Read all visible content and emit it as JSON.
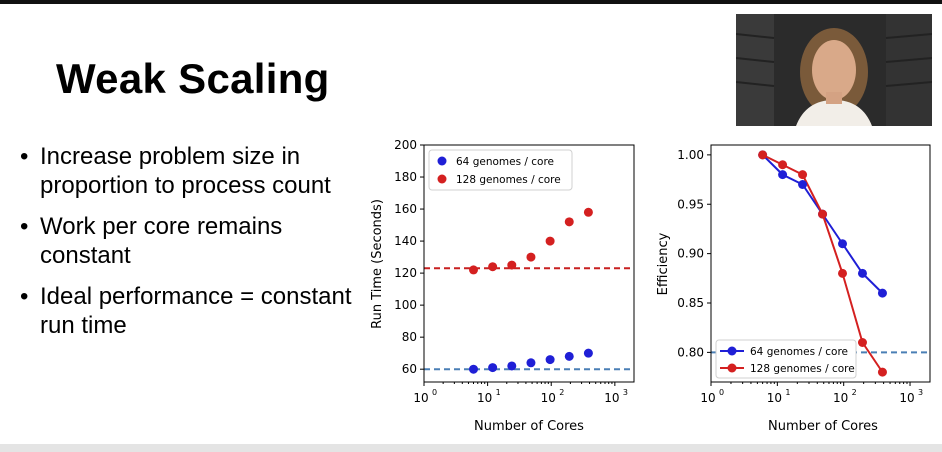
{
  "slide": {
    "title": "Weak Scaling",
    "bullets": [
      "Increase problem size in proportion to process count",
      "Work per core remains constant",
      "Ideal performance = constant run time"
    ],
    "bullet_symbol": "•"
  },
  "colors": {
    "blue": "#1f1fd6",
    "red": "#d42020",
    "dash_blue": "#4a7fb5",
    "dash_red": "#c82020"
  },
  "chart_data": [
    {
      "type": "scatter",
      "xlabel": "Number of Cores",
      "ylabel": "Run Time (Seconds)",
      "xscale": "log",
      "xlim": [
        1,
        2000
      ],
      "ylim": [
        52,
        200
      ],
      "xticks": [
        1,
        10,
        100,
        1000
      ],
      "xtick_labels": [
        "10",
        "10",
        "10",
        "10"
      ],
      "xtick_exponents": [
        "0",
        "1",
        "2",
        "3"
      ],
      "yticks": [
        60,
        80,
        100,
        120,
        140,
        160,
        180,
        200
      ],
      "ytick_labels": [
        "60",
        "80",
        "100",
        "120",
        "140",
        "160",
        "180",
        "200"
      ],
      "legend": "top-left",
      "series": [
        {
          "name": "64 genomes / core",
          "x": [
            6,
            12,
            24,
            48,
            96,
            192,
            384
          ],
          "values": [
            60,
            61,
            62,
            64,
            66,
            68,
            70
          ],
          "ideal": 60
        },
        {
          "name": "128 genomes / core",
          "x": [
            6,
            12,
            24,
            48,
            96,
            192,
            384
          ],
          "values": [
            122,
            124,
            125,
            130,
            140,
            152,
            158
          ],
          "ideal": 123
        }
      ]
    },
    {
      "type": "line",
      "xlabel": "Number of Cores",
      "ylabel": "Efficiency",
      "xscale": "log",
      "xlim": [
        1,
        2000
      ],
      "ylim": [
        0.77,
        1.01
      ],
      "xticks": [
        1,
        10,
        100,
        1000
      ],
      "xtick_labels": [
        "10",
        "10",
        "10",
        "10"
      ],
      "xtick_exponents": [
        "0",
        "1",
        "2",
        "3"
      ],
      "yticks": [
        0.8,
        0.85,
        0.9,
        0.95,
        1.0
      ],
      "ytick_labels": [
        "0.80",
        "0.85",
        "0.90",
        "0.95",
        "1.00"
      ],
      "legend": "bottom-left",
      "reference_line": 0.8,
      "series": [
        {
          "name": "64 genomes / core",
          "x": [
            6,
            12,
            24,
            48,
            96,
            192,
            384
          ],
          "values": [
            1.0,
            0.98,
            0.97,
            0.94,
            0.91,
            0.88,
            0.86
          ]
        },
        {
          "name": "128 genomes / core",
          "x": [
            6,
            12,
            24,
            48,
            96,
            192,
            384
          ],
          "values": [
            1.0,
            0.99,
            0.98,
            0.94,
            0.88,
            0.81,
            0.78
          ]
        }
      ]
    }
  ]
}
